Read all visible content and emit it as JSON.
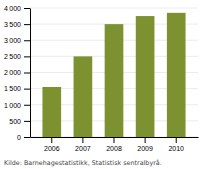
{
  "chart_data": {
    "type": "bar",
    "categories": [
      "2006",
      "2007",
      "2008",
      "2009",
      "2010"
    ],
    "values": [
      1550,
      2500,
      3500,
      3750,
      3850
    ],
    "color": "#7d9130",
    "ylim": [
      0,
      4000
    ],
    "yticks": [
      0,
      500,
      {
        "value": 1000,
        "label": "1 000"
      },
      {
        "value": 1500,
        "label": "1 500"
      },
      {
        "value": 2000,
        "label": "2 000"
      },
      {
        "value": 2500,
        "label": "2 500"
      },
      {
        "value": 3000,
        "label": "3 000"
      },
      {
        "value": 3500,
        "label": "3 500"
      },
      {
        "value": 4000,
        "label": "4 000"
      }
    ],
    "grid": true,
    "caption": "Kilde: Barnehagestatistikk, Statistisk sentralbyrå."
  }
}
